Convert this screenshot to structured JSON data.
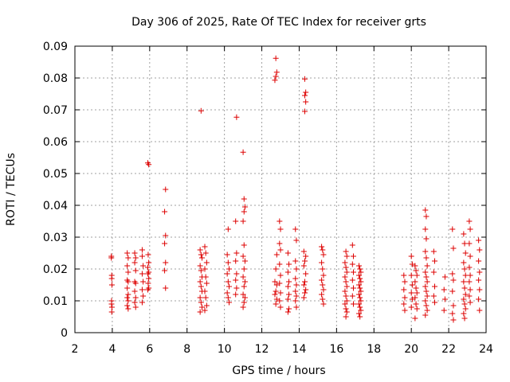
{
  "chart_data": {
    "type": "scatter",
    "title": "Day 306 of 2025, Rate Of TEC Index for receiver grts",
    "xlabel": "GPS time / hours",
    "ylabel": "ROTI / TECUs",
    "xlim": [
      2,
      24
    ],
    "ylim": [
      0,
      0.09
    ],
    "xticks": [
      "2",
      "4",
      "6",
      "8",
      "10",
      "12",
      "14",
      "16",
      "18",
      "20",
      "22",
      "24"
    ],
    "yticks": [
      "0",
      "0.01",
      "0.02",
      "0.03",
      "0.04",
      "0.05",
      "0.06",
      "0.07",
      "0.08",
      "0.09"
    ],
    "grid": true,
    "marker": "plus",
    "color": "#dd0000",
    "points": [
      [
        3.95,
        0.024
      ],
      [
        3.95,
        0.0235
      ],
      [
        3.97,
        0.018
      ],
      [
        3.97,
        0.017
      ],
      [
        3.98,
        0.015
      ],
      [
        3.96,
        0.01
      ],
      [
        3.96,
        0.009
      ],
      [
        3.98,
        0.008
      ],
      [
        3.97,
        0.0065
      ],
      [
        4.8,
        0.025
      ],
      [
        4.85,
        0.0235
      ],
      [
        4.8,
        0.021
      ],
      [
        4.85,
        0.019
      ],
      [
        4.8,
        0.0165
      ],
      [
        4.85,
        0.016
      ],
      [
        4.8,
        0.014
      ],
      [
        4.85,
        0.012
      ],
      [
        4.8,
        0.011
      ],
      [
        4.85,
        0.01
      ],
      [
        4.8,
        0.0085
      ],
      [
        4.85,
        0.0075
      ],
      [
        5.2,
        0.025
      ],
      [
        5.25,
        0.0235
      ],
      [
        5.2,
        0.022
      ],
      [
        5.25,
        0.0195
      ],
      [
        5.2,
        0.016
      ],
      [
        5.25,
        0.0155
      ],
      [
        5.2,
        0.013
      ],
      [
        5.25,
        0.011
      ],
      [
        5.2,
        0.0095
      ],
      [
        5.25,
        0.008
      ],
      [
        5.6,
        0.026
      ],
      [
        5.6,
        0.024
      ],
      [
        5.65,
        0.021
      ],
      [
        5.6,
        0.0185
      ],
      [
        5.65,
        0.016
      ],
      [
        5.6,
        0.0135
      ],
      [
        5.65,
        0.0115
      ],
      [
        5.6,
        0.0095
      ],
      [
        5.9,
        0.0533
      ],
      [
        5.95,
        0.0528
      ],
      [
        5.92,
        0.0245
      ],
      [
        5.95,
        0.022
      ],
      [
        5.9,
        0.0205
      ],
      [
        5.95,
        0.019
      ],
      [
        5.9,
        0.0185
      ],
      [
        5.95,
        0.017
      ],
      [
        5.92,
        0.0155
      ],
      [
        5.95,
        0.014
      ],
      [
        5.9,
        0.0135
      ],
      [
        6.85,
        0.045
      ],
      [
        6.8,
        0.038
      ],
      [
        6.85,
        0.0305
      ],
      [
        6.8,
        0.028
      ],
      [
        6.85,
        0.022
      ],
      [
        6.8,
        0.0195
      ],
      [
        6.85,
        0.014
      ],
      [
        8.75,
        0.0697
      ],
      [
        8.7,
        0.026
      ],
      [
        8.75,
        0.0245
      ],
      [
        8.8,
        0.0235
      ],
      [
        8.7,
        0.021
      ],
      [
        8.75,
        0.0195
      ],
      [
        8.8,
        0.0175
      ],
      [
        8.7,
        0.016
      ],
      [
        8.75,
        0.0145
      ],
      [
        8.8,
        0.013
      ],
      [
        8.7,
        0.011
      ],
      [
        8.75,
        0.0095
      ],
      [
        8.8,
        0.008
      ],
      [
        8.7,
        0.0065
      ],
      [
        8.95,
        0.027
      ],
      [
        9.0,
        0.025
      ],
      [
        9.05,
        0.022
      ],
      [
        8.95,
        0.02
      ],
      [
        9.0,
        0.0175
      ],
      [
        9.05,
        0.0155
      ],
      [
        8.95,
        0.013
      ],
      [
        9.0,
        0.011
      ],
      [
        9.05,
        0.0085
      ],
      [
        8.95,
        0.007
      ],
      [
        10.2,
        0.0325
      ],
      [
        10.15,
        0.0245
      ],
      [
        10.2,
        0.022
      ],
      [
        10.25,
        0.02
      ],
      [
        10.15,
        0.0185
      ],
      [
        10.2,
        0.016
      ],
      [
        10.25,
        0.0145
      ],
      [
        10.15,
        0.0125
      ],
      [
        10.2,
        0.011
      ],
      [
        10.25,
        0.0095
      ],
      [
        10.65,
        0.0677
      ],
      [
        10.6,
        0.035
      ],
      [
        10.65,
        0.025
      ],
      [
        10.6,
        0.0225
      ],
      [
        10.65,
        0.0185
      ],
      [
        10.6,
        0.0165
      ],
      [
        10.65,
        0.014
      ],
      [
        10.6,
        0.012
      ],
      [
        11.0,
        0.0567
      ],
      [
        11.05,
        0.042
      ],
      [
        11.1,
        0.0395
      ],
      [
        11.05,
        0.038
      ],
      [
        11.0,
        0.035
      ],
      [
        11.05,
        0.0275
      ],
      [
        11.0,
        0.024
      ],
      [
        11.1,
        0.0225
      ],
      [
        11.05,
        0.02
      ],
      [
        11.0,
        0.0175
      ],
      [
        11.1,
        0.016
      ],
      [
        11.05,
        0.0145
      ],
      [
        11.0,
        0.012
      ],
      [
        11.1,
        0.011
      ],
      [
        11.05,
        0.0095
      ],
      [
        11.0,
        0.008
      ],
      [
        12.75,
        0.0862
      ],
      [
        12.8,
        0.0818
      ],
      [
        12.75,
        0.0805
      ],
      [
        12.7,
        0.0793
      ],
      [
        12.8,
        0.0245
      ],
      [
        12.75,
        0.02
      ],
      [
        12.7,
        0.016
      ],
      [
        12.8,
        0.015
      ],
      [
        12.75,
        0.013
      ],
      [
        12.7,
        0.012
      ],
      [
        12.8,
        0.0105
      ],
      [
        12.75,
        0.009
      ],
      [
        12.95,
        0.035
      ],
      [
        13.0,
        0.0325
      ],
      [
        12.95,
        0.028
      ],
      [
        13.0,
        0.026
      ],
      [
        12.95,
        0.0215
      ],
      [
        13.0,
        0.018
      ],
      [
        12.95,
        0.0155
      ],
      [
        13.0,
        0.0125
      ],
      [
        12.95,
        0.01
      ],
      [
        13.0,
        0.008
      ],
      [
        13.4,
        0.025
      ],
      [
        13.45,
        0.0215
      ],
      [
        13.4,
        0.019
      ],
      [
        13.45,
        0.016
      ],
      [
        13.4,
        0.0145
      ],
      [
        13.45,
        0.012
      ],
      [
        13.4,
        0.0105
      ],
      [
        13.45,
        0.0075
      ],
      [
        13.4,
        0.0065
      ],
      [
        13.8,
        0.0325
      ],
      [
        13.85,
        0.029
      ],
      [
        13.8,
        0.0225
      ],
      [
        13.85,
        0.02
      ],
      [
        13.8,
        0.017
      ],
      [
        13.85,
        0.015
      ],
      [
        13.8,
        0.013
      ],
      [
        13.85,
        0.0115
      ],
      [
        13.8,
        0.01
      ],
      [
        13.85,
        0.008
      ],
      [
        14.3,
        0.0797
      ],
      [
        14.35,
        0.0755
      ],
      [
        14.3,
        0.0745
      ],
      [
        14.35,
        0.0725
      ],
      [
        14.3,
        0.0695
      ],
      [
        14.25,
        0.0255
      ],
      [
        14.35,
        0.024
      ],
      [
        14.3,
        0.0225
      ],
      [
        14.25,
        0.021
      ],
      [
        14.35,
        0.0185
      ],
      [
        14.3,
        0.016
      ],
      [
        14.25,
        0.015
      ],
      [
        14.35,
        0.0135
      ],
      [
        14.3,
        0.0125
      ],
      [
        14.25,
        0.011
      ],
      [
        15.2,
        0.027
      ],
      [
        15.25,
        0.026
      ],
      [
        15.3,
        0.0245
      ],
      [
        15.2,
        0.022
      ],
      [
        15.25,
        0.02
      ],
      [
        15.3,
        0.018
      ],
      [
        15.2,
        0.0165
      ],
      [
        15.25,
        0.015
      ],
      [
        15.3,
        0.0135
      ],
      [
        15.2,
        0.012
      ],
      [
        15.25,
        0.0105
      ],
      [
        15.3,
        0.009
      ],
      [
        16.5,
        0.0255
      ],
      [
        16.55,
        0.024
      ],
      [
        16.45,
        0.022
      ],
      [
        16.5,
        0.0205
      ],
      [
        16.55,
        0.019
      ],
      [
        16.45,
        0.0175
      ],
      [
        16.5,
        0.016
      ],
      [
        16.55,
        0.0145
      ],
      [
        16.45,
        0.013
      ],
      [
        16.5,
        0.0115
      ],
      [
        16.55,
        0.01
      ],
      [
        16.45,
        0.009
      ],
      [
        16.5,
        0.0075
      ],
      [
        16.55,
        0.0065
      ],
      [
        16.5,
        0.005
      ],
      [
        16.85,
        0.0275
      ],
      [
        16.9,
        0.024
      ],
      [
        16.85,
        0.0215
      ],
      [
        16.9,
        0.019
      ],
      [
        16.85,
        0.0165
      ],
      [
        16.9,
        0.014
      ],
      [
        16.85,
        0.0115
      ],
      [
        16.9,
        0.009
      ],
      [
        17.2,
        0.021
      ],
      [
        17.25,
        0.02
      ],
      [
        17.3,
        0.019
      ],
      [
        17.2,
        0.018
      ],
      [
        17.25,
        0.017
      ],
      [
        17.3,
        0.016
      ],
      [
        17.2,
        0.015
      ],
      [
        17.25,
        0.014
      ],
      [
        17.3,
        0.013
      ],
      [
        17.2,
        0.012
      ],
      [
        17.25,
        0.011
      ],
      [
        17.3,
        0.01
      ],
      [
        17.2,
        0.009
      ],
      [
        17.25,
        0.008
      ],
      [
        17.3,
        0.007
      ],
      [
        17.2,
        0.006
      ],
      [
        17.25,
        0.005
      ],
      [
        19.6,
        0.018
      ],
      [
        19.65,
        0.016
      ],
      [
        19.6,
        0.0135
      ],
      [
        19.65,
        0.011
      ],
      [
        19.6,
        0.009
      ],
      [
        19.65,
        0.007
      ],
      [
        20.0,
        0.024
      ],
      [
        20.05,
        0.0215
      ],
      [
        20.0,
        0.018
      ],
      [
        20.05,
        0.015
      ],
      [
        20.0,
        0.0125
      ],
      [
        20.05,
        0.0105
      ],
      [
        20.0,
        0.008
      ],
      [
        20.2,
        0.021
      ],
      [
        20.25,
        0.0195
      ],
      [
        20.3,
        0.018
      ],
      [
        20.2,
        0.016
      ],
      [
        20.25,
        0.014
      ],
      [
        20.3,
        0.0125
      ],
      [
        20.2,
        0.011
      ],
      [
        20.25,
        0.009
      ],
      [
        20.3,
        0.0075
      ],
      [
        20.2,
        0.0045
      ],
      [
        20.75,
        0.0385
      ],
      [
        20.8,
        0.0365
      ],
      [
        20.75,
        0.0325
      ],
      [
        20.8,
        0.0295
      ],
      [
        20.75,
        0.0255
      ],
      [
        20.8,
        0.0235
      ],
      [
        20.85,
        0.021
      ],
      [
        20.75,
        0.019
      ],
      [
        20.8,
        0.0175
      ],
      [
        20.85,
        0.016
      ],
      [
        20.75,
        0.0145
      ],
      [
        20.8,
        0.013
      ],
      [
        20.85,
        0.0115
      ],
      [
        20.75,
        0.01
      ],
      [
        20.8,
        0.0085
      ],
      [
        20.85,
        0.007
      ],
      [
        20.75,
        0.0055
      ],
      [
        21.2,
        0.0255
      ],
      [
        21.25,
        0.0225
      ],
      [
        21.2,
        0.019
      ],
      [
        21.25,
        0.0145
      ],
      [
        21.2,
        0.0115
      ],
      [
        21.25,
        0.0095
      ],
      [
        21.8,
        0.0175
      ],
      [
        21.75,
        0.0135
      ],
      [
        21.8,
        0.0105
      ],
      [
        21.75,
        0.007
      ],
      [
        22.2,
        0.0325
      ],
      [
        22.25,
        0.0265
      ],
      [
        22.2,
        0.0185
      ],
      [
        22.25,
        0.0165
      ],
      [
        22.2,
        0.013
      ],
      [
        22.25,
        0.0085
      ],
      [
        22.2,
        0.006
      ],
      [
        22.25,
        0.004
      ],
      [
        22.8,
        0.031
      ],
      [
        22.85,
        0.028
      ],
      [
        22.9,
        0.025
      ],
      [
        22.8,
        0.022
      ],
      [
        22.85,
        0.02
      ],
      [
        22.9,
        0.018
      ],
      [
        22.8,
        0.016
      ],
      [
        22.85,
        0.014
      ],
      [
        22.9,
        0.012
      ],
      [
        22.8,
        0.0105
      ],
      [
        22.85,
        0.009
      ],
      [
        22.9,
        0.0075
      ],
      [
        22.8,
        0.006
      ],
      [
        22.85,
        0.0045
      ],
      [
        23.1,
        0.035
      ],
      [
        23.15,
        0.0325
      ],
      [
        23.1,
        0.028
      ],
      [
        23.15,
        0.024
      ],
      [
        23.1,
        0.0205
      ],
      [
        23.15,
        0.018
      ],
      [
        23.1,
        0.016
      ],
      [
        23.15,
        0.0135
      ],
      [
        23.1,
        0.0115
      ],
      [
        23.15,
        0.0095
      ],
      [
        23.6,
        0.029
      ],
      [
        23.65,
        0.026
      ],
      [
        23.6,
        0.0225
      ],
      [
        23.65,
        0.019
      ],
      [
        23.6,
        0.0165
      ],
      [
        23.65,
        0.0135
      ],
      [
        23.6,
        0.0105
      ],
      [
        23.65,
        0.007
      ]
    ]
  }
}
